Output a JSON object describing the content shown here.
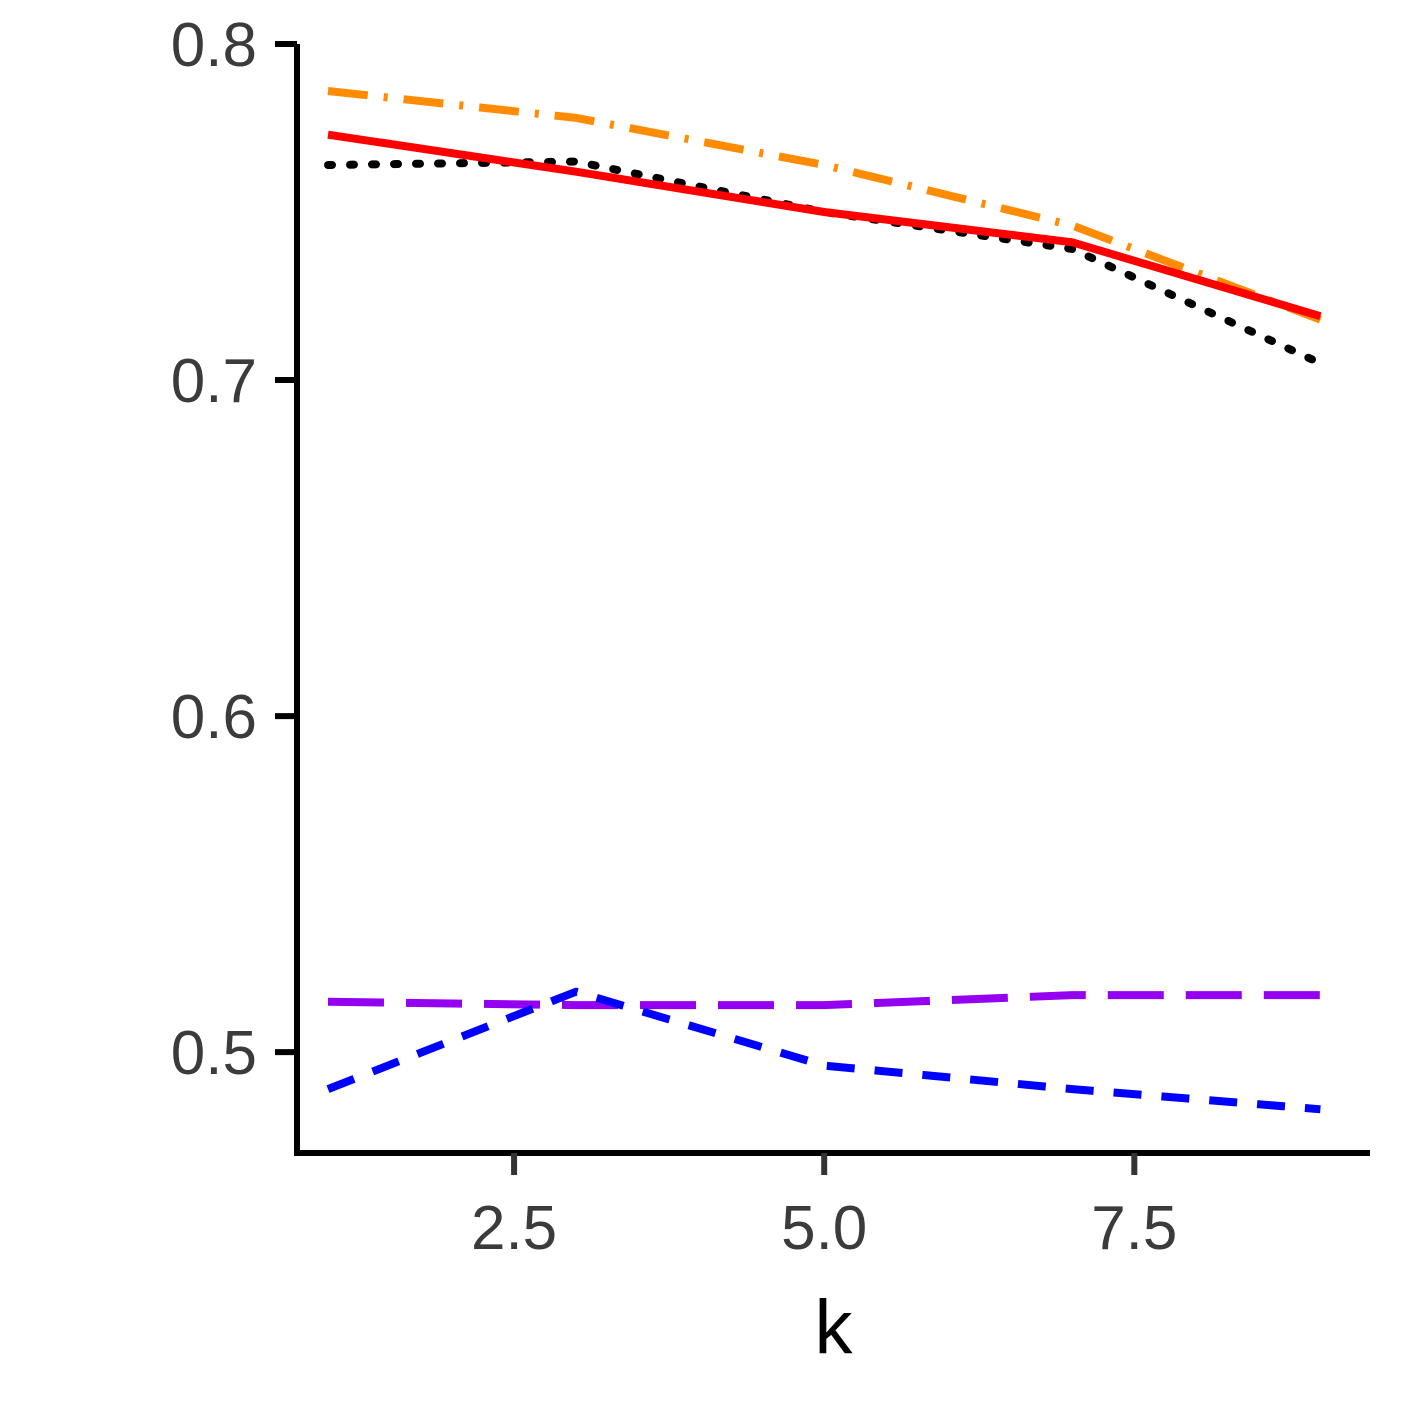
{
  "chart_data": {
    "type": "line",
    "title": "",
    "xlabel": "k",
    "ylabel": "",
    "xlim": [
      0.75,
      9.4
    ],
    "ylim": [
      0.47,
      0.8
    ],
    "x_ticks": [
      2.5,
      5.0,
      7.5
    ],
    "x_tick_labels": [
      "2.5",
      "5.0",
      "7.5"
    ],
    "y_ticks": [
      0.5,
      0.6,
      0.7,
      0.8
    ],
    "y_tick_labels": [
      "0.5",
      "0.6",
      "0.7",
      "0.8"
    ],
    "grid": false,
    "legend": "none",
    "series": [
      {
        "color": "#ff8c00",
        "dash": "dashdot",
        "x": [
          1,
          3,
          5,
          7,
          9
        ],
        "y": [
          0.786,
          0.778,
          0.764,
          0.746,
          0.718
        ]
      },
      {
        "color": "#000000",
        "dash": "dotted",
        "x": [
          1,
          3,
          5,
          7,
          9
        ],
        "y": [
          0.764,
          0.765,
          0.75,
          0.739,
          0.705
        ]
      },
      {
        "color": "#ff0000",
        "dash": "solid",
        "x": [
          1,
          3,
          5,
          7,
          9
        ],
        "y": [
          0.773,
          0.762,
          0.75,
          0.741,
          0.719
        ]
      },
      {
        "color": "#9400f0",
        "dash": "longdash",
        "x": [
          1,
          3,
          5,
          7,
          9
        ],
        "y": [
          0.515,
          0.514,
          0.514,
          0.517,
          0.517
        ]
      },
      {
        "color": "#0000ff",
        "dash": "dashed",
        "x": [
          1,
          3,
          5,
          7,
          9
        ],
        "y": [
          0.489,
          0.518,
          0.496,
          0.489,
          0.483
        ]
      }
    ]
  }
}
